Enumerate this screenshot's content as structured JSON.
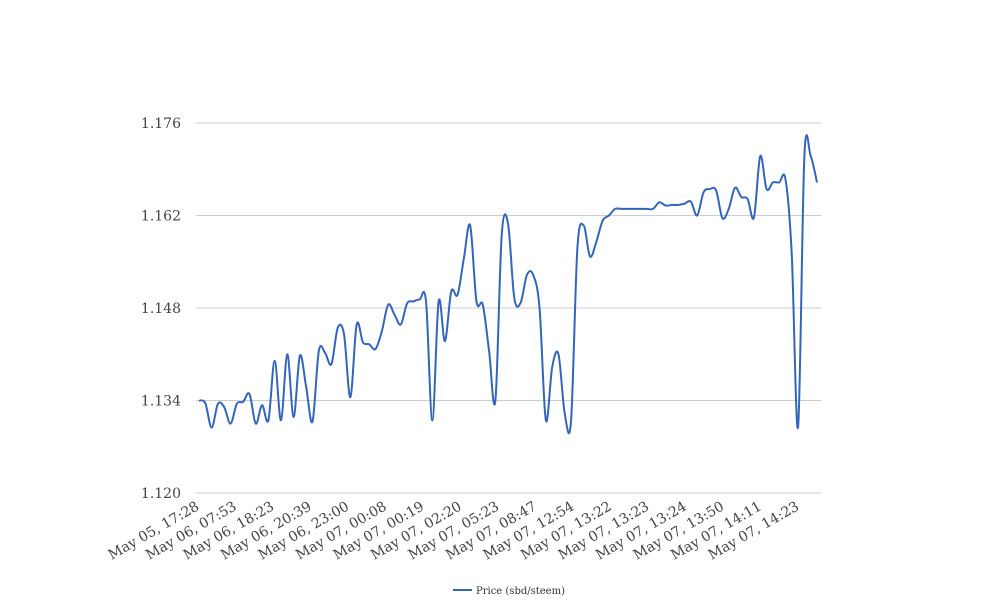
{
  "chart_data": {
    "type": "line",
    "title": "",
    "xlabel": "",
    "ylabel": "",
    "ylim": [
      1.12,
      1.176
    ],
    "yticks": [
      "1.176",
      "1.162",
      "1.148",
      "1.134",
      "1.120"
    ],
    "grid": true,
    "legend_position": "bottom-center",
    "x_tick_labels": [
      "May 05, 17:28",
      "May 06, 07:53",
      "May 06, 18:23",
      "May 06, 20:39",
      "May 06, 23:00",
      "May 07, 00:08",
      "May 07, 00:19",
      "May 07, 02:20",
      "May 07, 05:23",
      "May 07, 08:47",
      "May 07, 12:54",
      "May 07, 13:22",
      "May 07, 13:23",
      "May 07, 13:24",
      "May 07, 13:50",
      "May 07, 14:11",
      "May 07, 14:23"
    ],
    "series": [
      {
        "name": "Price (sbd/steem)",
        "color": "#3366bb",
        "values": [
          1.134,
          1.1336,
          1.1299,
          1.1335,
          1.133,
          1.1305,
          1.1335,
          1.1338,
          1.135,
          1.1305,
          1.1333,
          1.131,
          1.14,
          1.131,
          1.141,
          1.1315,
          1.1408,
          1.136,
          1.1308,
          1.1415,
          1.1412,
          1.1395,
          1.145,
          1.144,
          1.1345,
          1.1455,
          1.1428,
          1.1425,
          1.1418,
          1.1445,
          1.1485,
          1.147,
          1.1455,
          1.1487,
          1.149,
          1.1493,
          1.149,
          1.131,
          1.149,
          1.143,
          1.1505,
          1.15,
          1.1555,
          1.1605,
          1.149,
          1.1485,
          1.1415,
          1.134,
          1.159,
          1.1608,
          1.1495,
          1.1488,
          1.153,
          1.153,
          1.148,
          1.131,
          1.139,
          1.141,
          1.132,
          1.131,
          1.157,
          1.1605,
          1.1558,
          1.158,
          1.1612,
          1.162,
          1.163,
          1.163,
          1.163,
          1.163,
          1.163,
          1.163,
          1.163,
          1.164,
          1.1635,
          1.1636,
          1.1636,
          1.1638,
          1.1641,
          1.162,
          1.1655,
          1.166,
          1.1658,
          1.1616,
          1.163,
          1.1662,
          1.1648,
          1.1645,
          1.1617,
          1.171,
          1.166,
          1.167,
          1.167,
          1.1675,
          1.156,
          1.13,
          1.171,
          1.171,
          1.167
        ]
      }
    ]
  }
}
